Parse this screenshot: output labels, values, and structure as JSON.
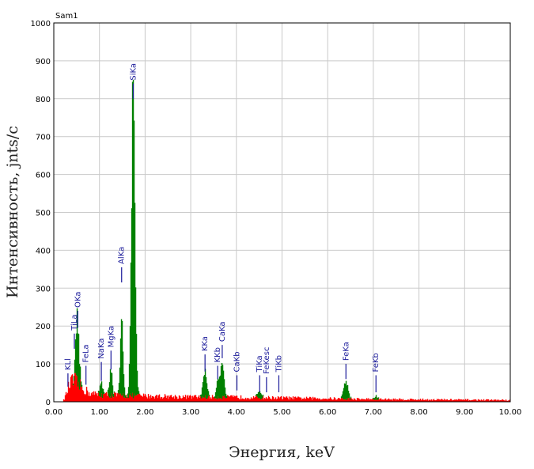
{
  "chart_data": {
    "type": "area",
    "title": "Sam1",
    "xlabel": "Энергия, keV",
    "ylabel": "Интенсивность, jnts/c",
    "xlim": [
      0,
      10
    ],
    "ylim": [
      0,
      1000
    ],
    "grid": true,
    "x_ticks": [
      "0.00",
      "1.00",
      "2.00",
      "3.00",
      "4.00",
      "5.00",
      "6.00",
      "7.00",
      "8.00",
      "9.00",
      "10.00"
    ],
    "y_ticks": [
      "0",
      "100",
      "200",
      "300",
      "400",
      "500",
      "600",
      "700",
      "800",
      "900",
      "1000"
    ],
    "colors": {
      "background": "#ff0000",
      "peaks": "#008000",
      "labels": "#1a1a9a"
    },
    "series": [
      {
        "name": "background",
        "color": "#ff0000",
        "points": [
          [
            0.2,
            0
          ],
          [
            0.28,
            25
          ],
          [
            0.35,
            55
          ],
          [
            0.45,
            65
          ],
          [
            0.6,
            45
          ],
          [
            0.8,
            25
          ],
          [
            1.0,
            22
          ],
          [
            1.5,
            20
          ],
          [
            2.0,
            18
          ],
          [
            3.0,
            15
          ],
          [
            4.0,
            14
          ],
          [
            5.0,
            12
          ],
          [
            6.0,
            10
          ],
          [
            7.0,
            8
          ],
          [
            8.0,
            7
          ],
          [
            9.0,
            6
          ],
          [
            10.0,
            5
          ]
        ]
      },
      {
        "name": "peaks",
        "color": "#008000",
        "peaks": [
          {
            "center": 0.52,
            "height": 165,
            "width": 0.035
          },
          {
            "center": 1.04,
            "height": 38,
            "width": 0.03
          },
          {
            "center": 1.25,
            "height": 70,
            "width": 0.03
          },
          {
            "center": 1.49,
            "height": 195,
            "width": 0.03
          },
          {
            "center": 1.74,
            "height": 780,
            "width": 0.04
          },
          {
            "center": 3.31,
            "height": 70,
            "width": 0.04
          },
          {
            "center": 3.59,
            "height": 45,
            "width": 0.03
          },
          {
            "center": 3.69,
            "height": 95,
            "width": 0.04
          },
          {
            "center": 4.51,
            "height": 18,
            "width": 0.04
          },
          {
            "center": 6.4,
            "height": 48,
            "width": 0.045
          },
          {
            "center": 7.06,
            "height": 8,
            "width": 0.04
          }
        ]
      }
    ],
    "peak_labels": [
      {
        "label": "KLl",
        "energy": 0.31,
        "marker_top": 75,
        "marker_bottom": 40
      },
      {
        "label": "TiLa",
        "energy": 0.45,
        "marker_top": 180,
        "marker_bottom": 140
      },
      {
        "label": "OKa",
        "energy": 0.525,
        "marker_top": 240,
        "marker_bottom": 195
      },
      {
        "label": "FeLa",
        "energy": 0.705,
        "marker_top": 95,
        "marker_bottom": 45
      },
      {
        "label": "NaKa",
        "energy": 1.041,
        "marker_top": 105,
        "marker_bottom": 55
      },
      {
        "label": "MgKa",
        "energy": 1.253,
        "marker_top": 135,
        "marker_bottom": 85
      },
      {
        "label": "AlKa",
        "energy": 1.486,
        "marker_top": 355,
        "marker_bottom": 315
      },
      {
        "label": "SiKa",
        "energy": 1.74,
        "marker_top": 840,
        "marker_bottom": 800
      },
      {
        "label": "KKa",
        "energy": 3.313,
        "marker_top": 125,
        "marker_bottom": 80
      },
      {
        "label": "KKb",
        "energy": 3.59,
        "marker_top": 95,
        "marker_bottom": 60
      },
      {
        "label": "CaKa",
        "energy": 3.69,
        "marker_top": 150,
        "marker_bottom": 115
      },
      {
        "label": "CaKb",
        "energy": 4.012,
        "marker_top": 70,
        "marker_bottom": 30
      },
      {
        "label": "TiKa",
        "energy": 4.51,
        "marker_top": 70,
        "marker_bottom": 25
      },
      {
        "label": "FeKesc",
        "energy": 4.66,
        "marker_top": 65,
        "marker_bottom": 25
      },
      {
        "label": "TiKb",
        "energy": 4.93,
        "marker_top": 70,
        "marker_bottom": 25
      },
      {
        "label": "FeKa",
        "energy": 6.4,
        "marker_top": 100,
        "marker_bottom": 60
      },
      {
        "label": "FeKb",
        "energy": 7.058,
        "marker_top": 70,
        "marker_bottom": 25
      }
    ]
  }
}
